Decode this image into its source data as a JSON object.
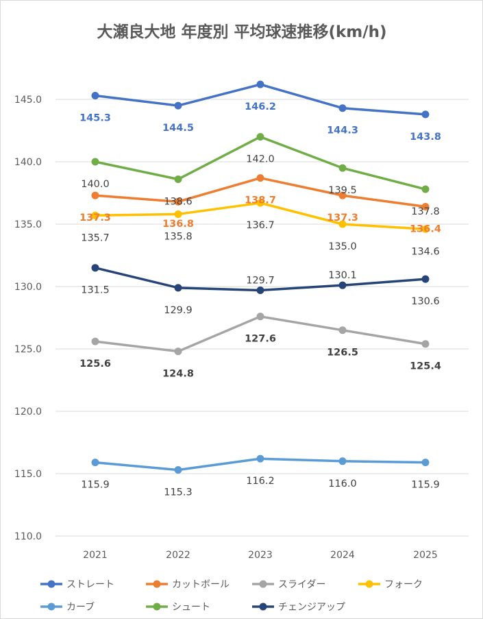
{
  "chart_data": {
    "type": "line",
    "title": "大瀬良大地 年度別 平均球速推移(km/h)",
    "xlabel": "",
    "ylabel": "",
    "ylim": [
      110,
      148
    ],
    "yticks": [
      "110.0",
      "115.0",
      "120.0",
      "125.0",
      "130.0",
      "135.0",
      "140.0",
      "145.0"
    ],
    "ytick_values": [
      110,
      115,
      120,
      125,
      130,
      135,
      140,
      145
    ],
    "categories": [
      "2021",
      "2022",
      "2023",
      "2024",
      "2025"
    ],
    "grid": true,
    "legend_position": "bottom",
    "series": [
      {
        "name": "ストレート",
        "color": "#4472c4",
        "values": [
          145.3,
          144.5,
          146.2,
          144.3,
          143.8
        ],
        "labels": [
          "145.3",
          "144.5",
          "146.2",
          "144.3",
          "143.8"
        ],
        "label_pos": [
          "below",
          "below",
          "below",
          "below",
          "below"
        ],
        "label_bold": true
      },
      {
        "name": "カットボール",
        "color": "#ed7d31",
        "values": [
          137.3,
          136.8,
          138.7,
          137.3,
          136.4
        ],
        "labels": [
          "137.3",
          "136.8",
          "138.7",
          "137.3",
          "136.4"
        ],
        "label_pos": [
          "below",
          "below",
          "below",
          "below",
          "below"
        ],
        "label_bold": true
      },
      {
        "name": "スライダー",
        "color": "#a5a5a5",
        "values": [
          125.6,
          124.8,
          127.6,
          126.5,
          125.4
        ],
        "labels": [
          "125.6",
          "124.8",
          "127.6",
          "126.5",
          "125.4"
        ],
        "label_pos": [
          "below",
          "below",
          "below",
          "below",
          "below"
        ],
        "label_bold": true,
        "label_color": "#404040"
      },
      {
        "name": "フォーク",
        "color": "#ffc000",
        "values": [
          135.7,
          135.8,
          136.7,
          135.0,
          134.6
        ],
        "labels": [
          "135.7",
          "135.8",
          "136.7",
          "135.0",
          "134.6"
        ],
        "label_pos": [
          "below",
          "below",
          "below",
          "below",
          "below"
        ],
        "label_bold": false,
        "label_color": "#404040"
      },
      {
        "name": "カーブ",
        "color": "#5b9bd5",
        "values": [
          115.9,
          115.3,
          116.2,
          116.0,
          115.9
        ],
        "labels": [
          "115.9",
          "115.3",
          "116.2",
          "116.0",
          "115.9"
        ],
        "label_pos": [
          "below",
          "below",
          "below",
          "below",
          "below"
        ],
        "label_bold": false,
        "label_color": "#404040"
      },
      {
        "name": "シュート",
        "color": "#70ad47",
        "values": [
          140.0,
          138.6,
          142.0,
          139.5,
          137.8
        ],
        "labels": [
          "140.0",
          "138.6",
          "142.0",
          "139.5",
          "137.8"
        ],
        "label_pos": [
          "below",
          "below",
          "below",
          "below",
          "below"
        ],
        "label_bold": false,
        "label_color": "#404040"
      },
      {
        "name": "チェンジアップ",
        "color": "#264478",
        "values": [
          131.5,
          129.9,
          129.7,
          130.1,
          130.6
        ],
        "labels": [
          "131.5",
          "129.9",
          "129.7",
          "130.1",
          "130.6"
        ],
        "label_pos": [
          "below",
          "below",
          "above",
          "above",
          "below"
        ],
        "label_bold": false,
        "label_color": "#404040"
      }
    ]
  }
}
